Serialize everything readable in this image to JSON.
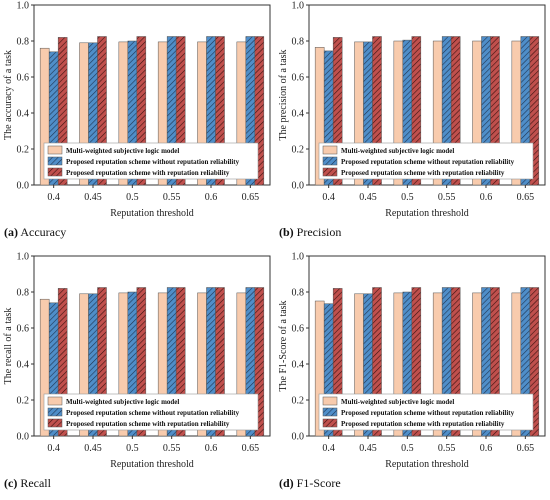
{
  "colors": {
    "series_fill": [
      "#f8cbad",
      "#4f8ec9",
      "#c0504d"
    ],
    "series_hatch": [
      "none",
      "#1f3550",
      "#3a1210"
    ],
    "stroke": "#333333"
  },
  "chart_data": [
    {
      "type": "bar",
      "caption_letter": "(a)",
      "caption_text": "Accuracy",
      "ylabel": "The accuracy of a task",
      "xlabel": "Reputation threshold",
      "categories": [
        "0.4",
        "0.45",
        "0.5",
        "0.55",
        "0.6",
        "0.65"
      ],
      "ylim": [
        0.0,
        1.0
      ],
      "yticks": [
        "0.0",
        "0.2",
        "0.4",
        "0.6",
        "0.8",
        "1.0"
      ],
      "legend_position": "lower-center",
      "series": [
        {
          "name": "Multi-weighted subjective logic model",
          "values": [
            0.76,
            0.79,
            0.795,
            0.795,
            0.795,
            0.795
          ]
        },
        {
          "name": "Proposed reputation scheme without reputation reliability",
          "values": [
            0.74,
            0.79,
            0.8,
            0.825,
            0.825,
            0.825
          ]
        },
        {
          "name": "Proposed reputation scheme with reputation reliability",
          "values": [
            0.82,
            0.825,
            0.825,
            0.825,
            0.825,
            0.825
          ]
        }
      ]
    },
    {
      "type": "bar",
      "caption_letter": "(b)",
      "caption_text": "Precision",
      "ylabel": "The  precision of a task",
      "xlabel": "Reputation threshold",
      "categories": [
        "0.4",
        "0.45",
        "0.5",
        "0.55",
        "0.6",
        "0.65"
      ],
      "ylim": [
        0.0,
        1.0
      ],
      "yticks": [
        "0.0",
        "0.2",
        "0.4",
        "0.6",
        "0.8",
        "1.0"
      ],
      "legend_position": "lower-center",
      "series": [
        {
          "name": "Multi-weighted subjective logic model",
          "values": [
            0.765,
            0.795,
            0.8,
            0.8,
            0.8,
            0.8
          ]
        },
        {
          "name": "Proposed reputation scheme without reputation reliability",
          "values": [
            0.745,
            0.795,
            0.805,
            0.825,
            0.825,
            0.825
          ]
        },
        {
          "name": "Proposed reputation scheme with reputation reliability",
          "values": [
            0.82,
            0.825,
            0.825,
            0.825,
            0.825,
            0.825
          ]
        }
      ]
    },
    {
      "type": "bar",
      "caption_letter": "(c)",
      "caption_text": "Recall",
      "ylabel": "The recall of a task",
      "xlabel": "Reputation threshold",
      "categories": [
        "0.4",
        "0.45",
        "0.5",
        "0.55",
        "0.6",
        "0.65"
      ],
      "ylim": [
        0.0,
        1.0
      ],
      "yticks": [
        "0.0",
        "0.2",
        "0.4",
        "0.6",
        "0.8",
        "1.0"
      ],
      "legend_position": "lower-center",
      "series": [
        {
          "name": "Multi-weighted subjective logic model",
          "values": [
            0.76,
            0.79,
            0.795,
            0.795,
            0.795,
            0.795
          ]
        },
        {
          "name": "Proposed reputation scheme without reputation reliability",
          "values": [
            0.74,
            0.79,
            0.8,
            0.825,
            0.825,
            0.825
          ]
        },
        {
          "name": "Proposed reputation scheme with reputation reliability",
          "values": [
            0.82,
            0.825,
            0.825,
            0.825,
            0.825,
            0.825
          ]
        }
      ]
    },
    {
      "type": "bar",
      "caption_letter": "(d)",
      "caption_text": "F1-Score",
      "ylabel": "The  F1-Score of a task",
      "xlabel": "Reputation threshold",
      "categories": [
        "0.4",
        "0.45",
        "0.5",
        "0.55",
        "0.6",
        "0.65"
      ],
      "ylim": [
        0.0,
        1.0
      ],
      "yticks": [
        "0.0",
        "0.2",
        "0.4",
        "0.6",
        "0.8",
        "1.0"
      ],
      "legend_position": "lower-center",
      "series": [
        {
          "name": "Multi-weighted subjective logic model",
          "values": [
            0.75,
            0.79,
            0.795,
            0.795,
            0.795,
            0.795
          ]
        },
        {
          "name": "Proposed reputation scheme without reputation reliability",
          "values": [
            0.735,
            0.79,
            0.8,
            0.825,
            0.825,
            0.825
          ]
        },
        {
          "name": "Proposed reputation scheme with reputation reliability",
          "values": [
            0.82,
            0.825,
            0.825,
            0.825,
            0.825,
            0.825
          ]
        }
      ]
    }
  ]
}
